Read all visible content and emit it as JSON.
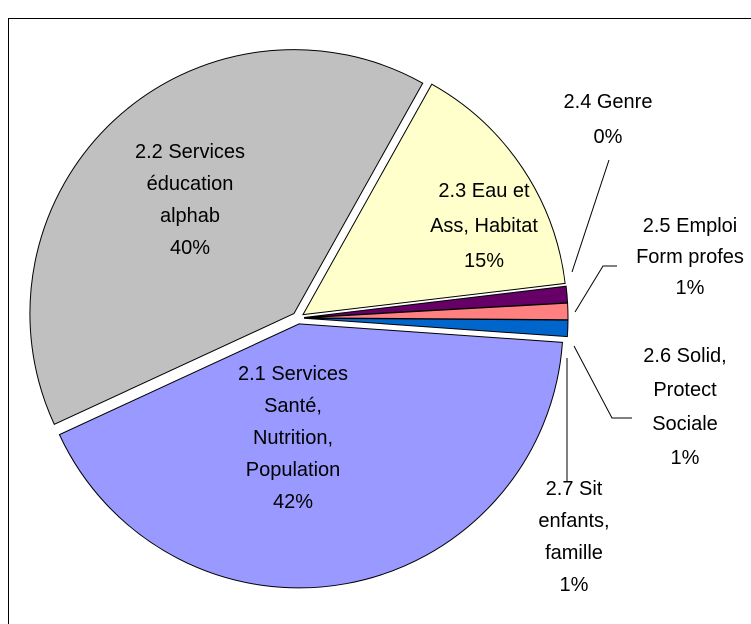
{
  "chart_data": {
    "type": "pie",
    "categories": [
      "2.1 Services\nSanté,\nNutrition,\nPopulation",
      "2.2 Services\néducation\nalphab",
      "2.3 Eau et\nAss, Habitat",
      "2.4 Genre",
      "2.5 Emploi\nForm profes",
      "2.6 Solid,\nProtect\nSociale",
      "2.7 Sit\nenfants,\nfamille"
    ],
    "values": [
      42,
      40,
      15,
      0,
      1,
      1,
      1
    ],
    "value_labels": [
      "42%",
      "40%",
      "15%",
      "0%",
      "1%",
      "1%",
      "1%"
    ],
    "colors": [
      "#9999ff",
      "#c0c0c0",
      "#ffffcc",
      "#ccffff",
      "#660066",
      "#ff8080",
      "#0066cc"
    ]
  }
}
